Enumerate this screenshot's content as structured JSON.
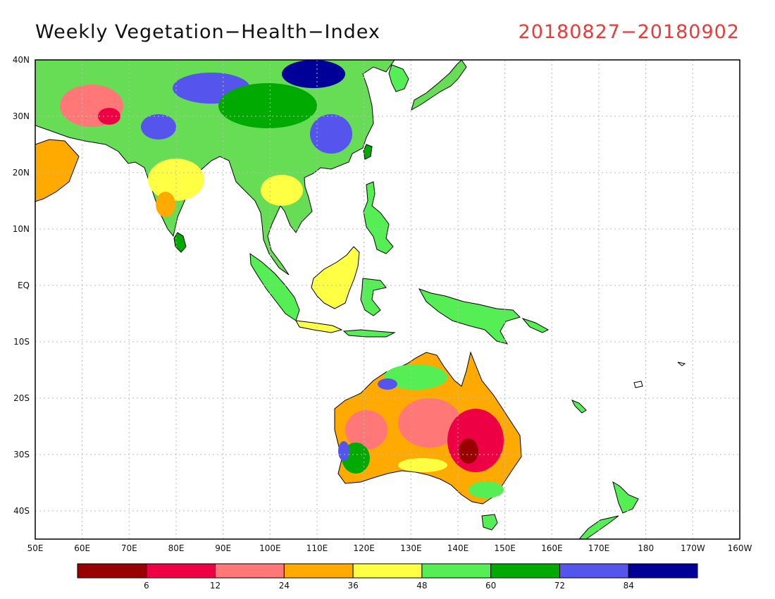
{
  "title": "Weekly Vegetation−Health−Index",
  "date_range": "20180827−20180902",
  "colors": {
    "ocean": "#ffffff",
    "coast": "#000000",
    "grid": "#bbbbbb",
    "title": "#111111",
    "date": "#e83b3b"
  },
  "map": {
    "lon_range": [
      50,
      200
    ],
    "lat_range": [
      -45,
      40
    ],
    "lon_ticks": [
      {
        "value": 50,
        "label": "50E"
      },
      {
        "value": 60,
        "label": "60E"
      },
      {
        "value": 70,
        "label": "70E"
      },
      {
        "value": 80,
        "label": "80E"
      },
      {
        "value": 90,
        "label": "90E"
      },
      {
        "value": 100,
        "label": "100E"
      },
      {
        "value": 110,
        "label": "110E"
      },
      {
        "value": 120,
        "label": "120E"
      },
      {
        "value": 130,
        "label": "130E"
      },
      {
        "value": 140,
        "label": "140E"
      },
      {
        "value": 150,
        "label": "150E"
      },
      {
        "value": 160,
        "label": "160E"
      },
      {
        "value": 170,
        "label": "170E"
      },
      {
        "value": 180,
        "label": "180"
      },
      {
        "value": 190,
        "label": "170W"
      },
      {
        "value": 200,
        "label": "160W"
      }
    ],
    "lat_ticks": [
      {
        "value": 40,
        "label": "40N"
      },
      {
        "value": 30,
        "label": "30N"
      },
      {
        "value": 20,
        "label": "20N"
      },
      {
        "value": 10,
        "label": "10N"
      },
      {
        "value": 0,
        "label": "EQ"
      },
      {
        "value": -10,
        "label": "10S"
      },
      {
        "value": -20,
        "label": "20S"
      },
      {
        "value": -30,
        "label": "30S"
      },
      {
        "value": -40,
        "label": "40S"
      }
    ],
    "grid": true
  },
  "colorbar": {
    "colors": [
      "#990000",
      "#ee0044",
      "#ff7777",
      "#ffaa00",
      "#ffff44",
      "#55ee55",
      "#00aa00",
      "#5555ee",
      "#000099"
    ],
    "labels": [
      "6",
      "12",
      "24",
      "36",
      "48",
      "60",
      "72",
      "84"
    ]
  }
}
